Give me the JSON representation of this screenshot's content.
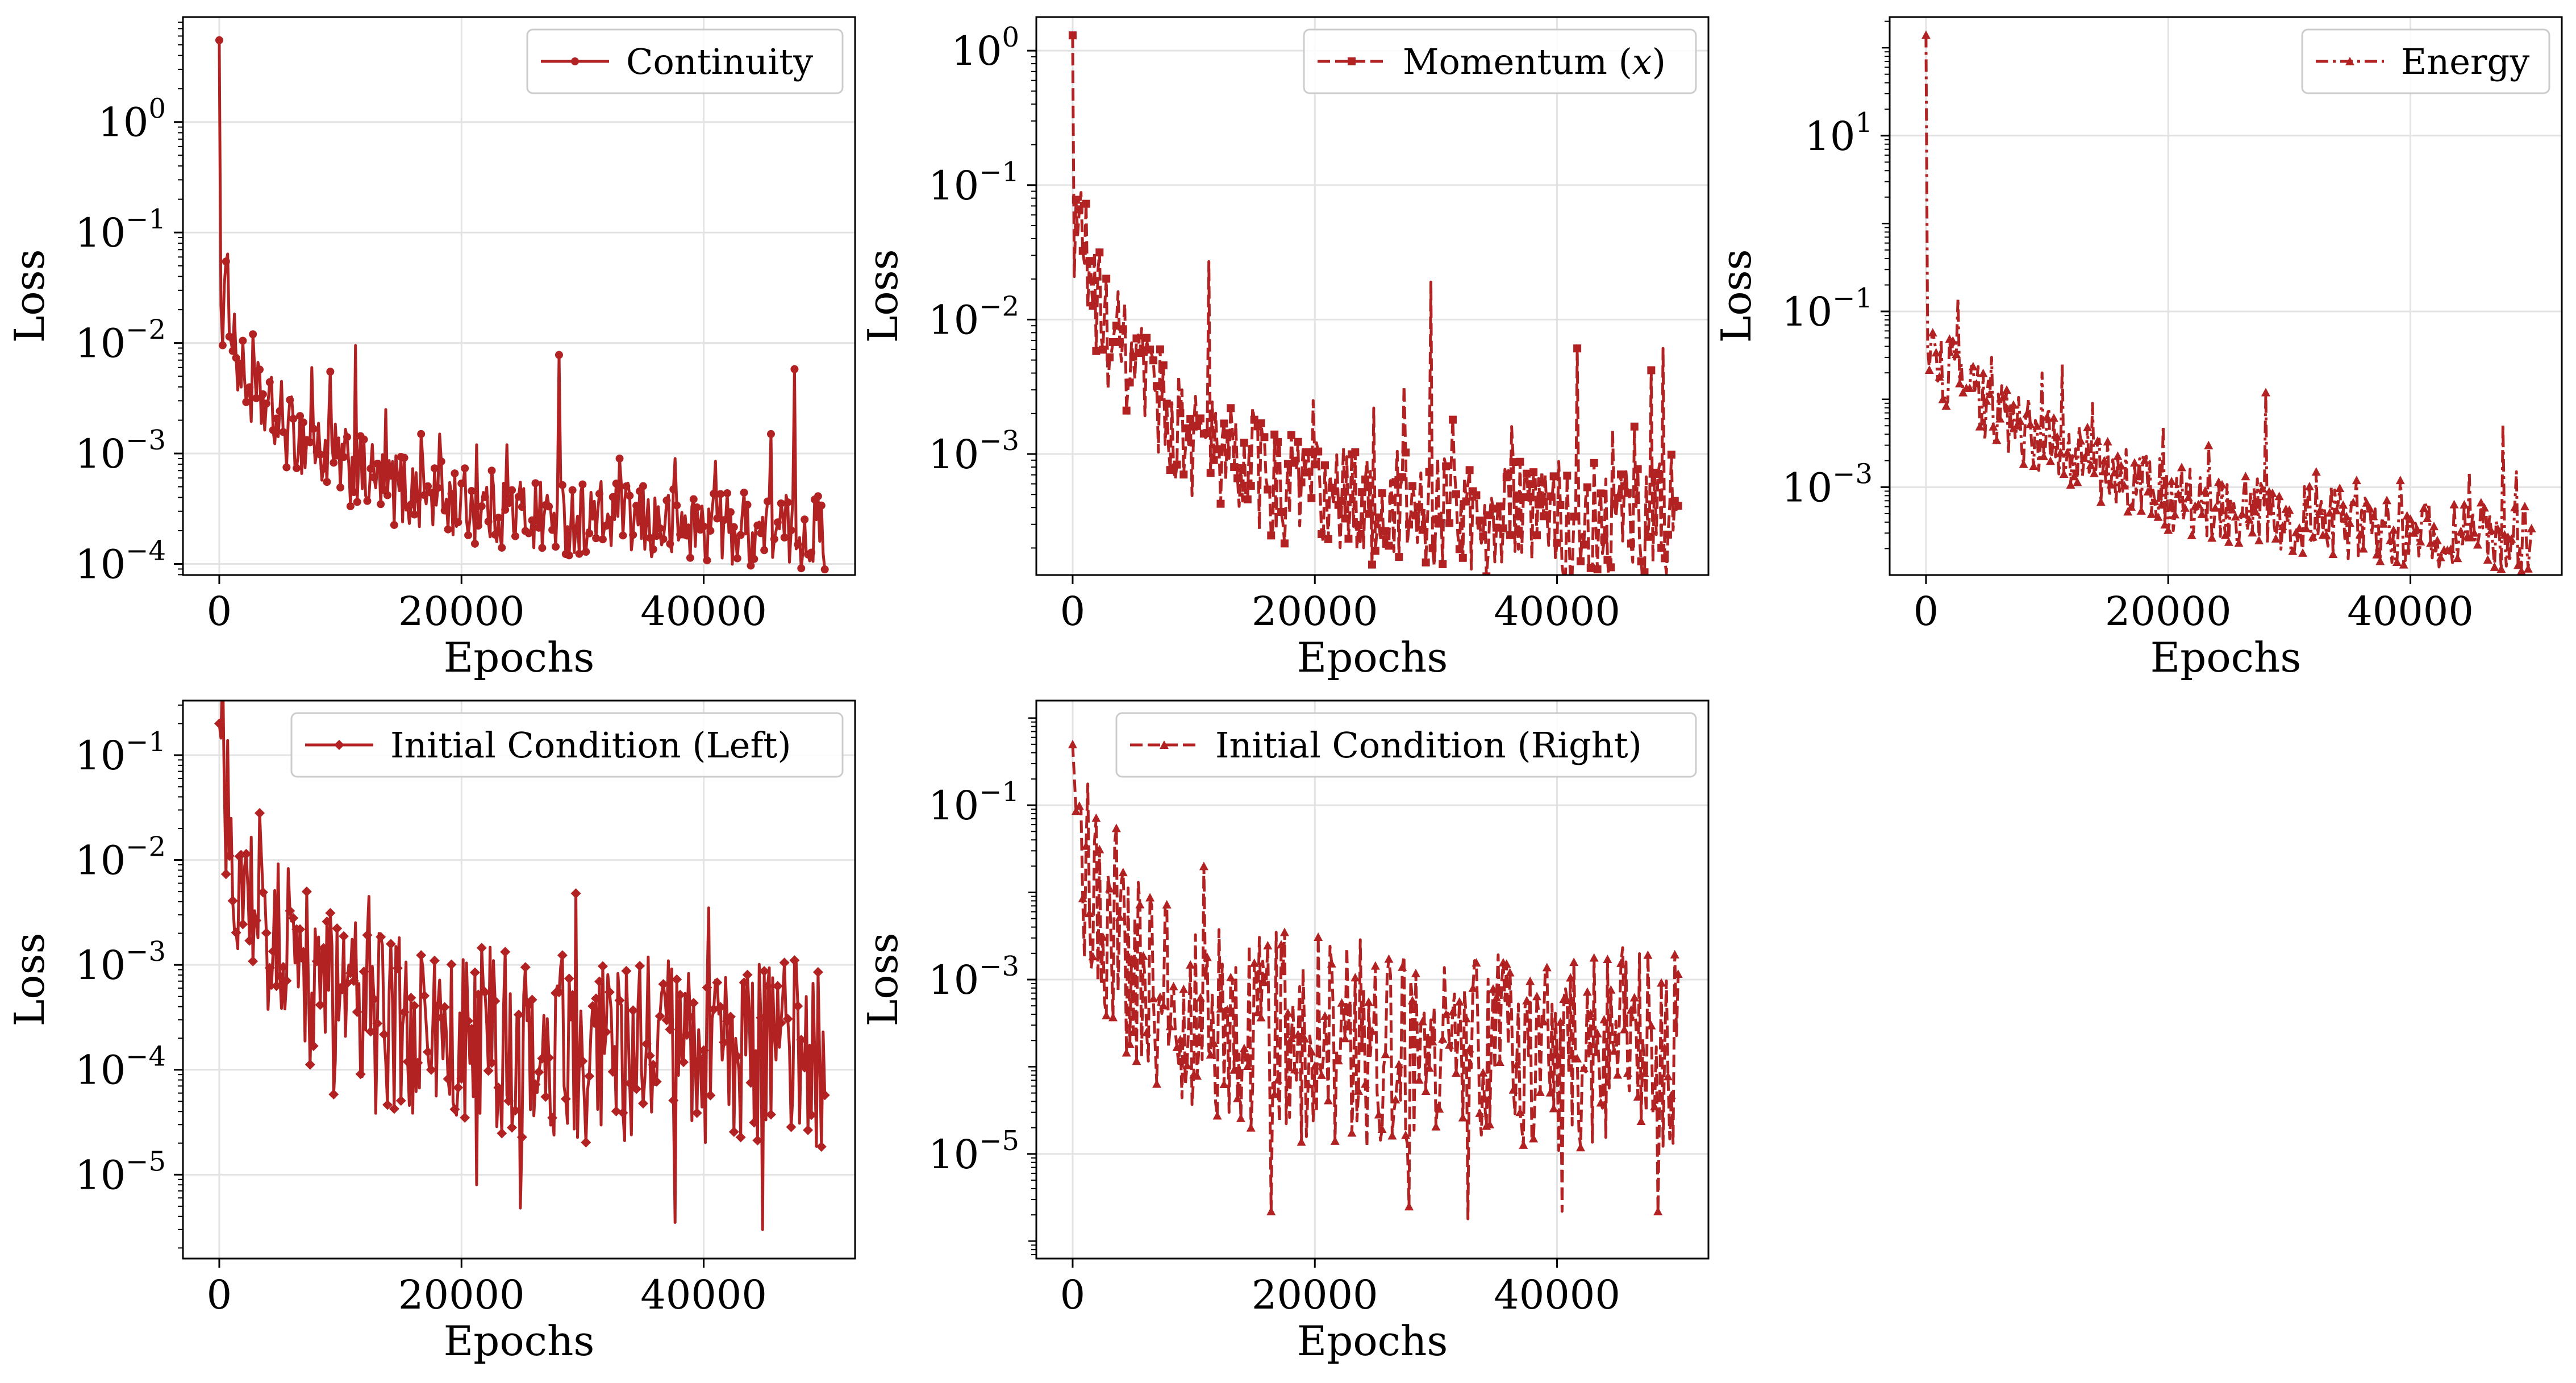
{
  "colors": {
    "series": "#b22222",
    "grid": "#e3e3e3",
    "axes": "#000000"
  },
  "chart_data": [
    {
      "type": "line",
      "panel": "continuity",
      "xlabel": "Epochs",
      "ylabel": "Loss",
      "yscale": "log",
      "xlim": [
        -3000,
        52500
      ],
      "ylim_exp": [
        -4.1,
        0.95
      ],
      "xticks": [
        0,
        20000,
        40000
      ],
      "xtick_labels": [
        "0",
        "20000",
        "40000"
      ],
      "yticks_exp": [
        0,
        -1,
        -2,
        -3,
        -4
      ],
      "ytick_labels": [
        {
          "base": "10",
          "exp": "0"
        },
        {
          "base": "10",
          "exp": "−1"
        },
        {
          "base": "10",
          "exp": "−2"
        },
        {
          "base": "10",
          "exp": "−3"
        },
        {
          "base": "10",
          "exp": "−4"
        }
      ],
      "legend": {
        "label": "Continuity",
        "position": "upper right",
        "linestyle": "solid",
        "marker": "dot"
      },
      "grid": true,
      "series": [
        {
          "name": "Continuity",
          "x": [
            0,
            150,
            300,
            500,
            700,
            1000,
            1500,
            2000,
            2500,
            3000,
            4000,
            5000,
            6000,
            7000,
            8000,
            9000,
            10000,
            11000,
            12000,
            14000,
            16000,
            18000,
            20000,
            22000,
            24000,
            26000,
            28000,
            30000,
            32000,
            34000,
            36000,
            38000,
            40000,
            42000,
            44000,
            46000,
            47500,
            48500,
            50000
          ],
          "y": [
            5.5,
            0.014,
            0.02,
            0.028,
            0.03,
            0.018,
            0.007,
            0.0045,
            0.004,
            0.0032,
            0.0025,
            0.0018,
            0.0015,
            0.0013,
            0.0011,
            0.00095,
            0.0008,
            0.0007,
            0.00062,
            0.0005,
            0.00045,
            0.0004,
            0.00035,
            0.00033,
            0.0003,
            0.00028,
            0.00027,
            0.00026,
            0.00025,
            0.00024,
            0.00023,
            0.00022,
            0.00022,
            0.00021,
            0.00021,
            0.0002,
            0.0002,
            0.0002,
            0.00019
          ],
          "noise": 0.35,
          "spikes": [
            [
              2800,
              0.012
            ],
            [
              5200,
              0.0045
            ],
            [
              7600,
              0.006
            ],
            [
              9200,
              0.0055
            ],
            [
              11300,
              0.0095
            ],
            [
              13800,
              0.0025
            ],
            [
              16600,
              0.0015
            ],
            [
              18200,
              0.0015
            ],
            [
              21300,
              0.0012
            ],
            [
              23800,
              0.0012
            ],
            [
              28000,
              0.0078
            ],
            [
              33000,
              0.0009
            ],
            [
              37600,
              0.0009
            ],
            [
              41000,
              0.00085
            ],
            [
              45600,
              0.0015
            ],
            [
              47500,
              0.0058
            ]
          ]
        }
      ]
    },
    {
      "type": "line",
      "panel": "momentum-x",
      "xlabel": "Epochs",
      "ylabel": "Loss",
      "yscale": "log",
      "xlim": [
        -3000,
        52500
      ],
      "ylim_exp": [
        -3.9,
        0.25
      ],
      "xticks": [
        0,
        20000,
        40000
      ],
      "xtick_labels": [
        "0",
        "20000",
        "40000"
      ],
      "yticks_exp": [
        0,
        -1,
        -2,
        -3
      ],
      "ytick_labels": [
        {
          "base": "10",
          "exp": "0"
        },
        {
          "base": "10",
          "exp": "−1"
        },
        {
          "base": "10",
          "exp": "−2"
        },
        {
          "base": "10",
          "exp": "−3"
        }
      ],
      "legend": {
        "label": "Momentum (",
        "label_var": "x",
        "label_end": ")",
        "position": "upper right",
        "linestyle": "dashed",
        "marker": "square"
      },
      "grid": true,
      "series": [
        {
          "name": "Momentum (x)",
          "x": [
            0,
            150,
            300,
            500,
            700,
            1000,
            1500,
            2000,
            2500,
            3000,
            4000,
            5000,
            6000,
            7000,
            8000,
            9000,
            10000,
            12000,
            14000,
            16000,
            18000,
            20000,
            22000,
            24000,
            26000,
            28000,
            30000,
            32000,
            34000,
            36000,
            38000,
            40000,
            42000,
            44000,
            46000,
            48000,
            49000,
            50000
          ],
          "y": [
            1.3,
            0.015,
            0.04,
            0.06,
            0.05,
            0.035,
            0.02,
            0.013,
            0.01,
            0.008,
            0.0055,
            0.004,
            0.003,
            0.0023,
            0.0018,
            0.0015,
            0.0013,
            0.001,
            0.0008,
            0.00065,
            0.00055,
            0.0005,
            0.00045,
            0.00042,
            0.0004,
            0.00038,
            0.00036,
            0.00035,
            0.00034,
            0.00033,
            0.00032,
            0.00032,
            0.00031,
            0.00031,
            0.0003,
            0.0003,
            0.00032,
            0.00045
          ],
          "noise": 0.45,
          "spikes": [
            [
              3600,
              0.009
            ],
            [
              7200,
              0.006
            ],
            [
              11300,
              0.027
            ],
            [
              14800,
              0.0022
            ],
            [
              19800,
              0.0025
            ],
            [
              24800,
              0.0022
            ],
            [
              27300,
              0.0032
            ],
            [
              29600,
              0.019
            ],
            [
              31400,
              0.0018
            ],
            [
              36200,
              0.0016
            ],
            [
              41600,
              0.0061
            ],
            [
              44600,
              0.0015
            ],
            [
              46400,
              0.0016
            ],
            [
              47800,
              0.0042
            ],
            [
              48800,
              0.0061
            ]
          ]
        }
      ]
    },
    {
      "type": "line",
      "panel": "energy",
      "xlabel": "Epochs",
      "ylabel": "Loss",
      "yscale": "log",
      "xlim": [
        -3000,
        52500
      ],
      "ylim_exp": [
        -4.0,
        2.35
      ],
      "xticks": [
        0,
        20000,
        40000
      ],
      "xtick_labels": [
        "0",
        "20000",
        "40000"
      ],
      "yticks_exp": [
        1,
        -1,
        -3
      ],
      "ytick_labels": [
        {
          "base": "10",
          "exp": "1"
        },
        {
          "base": "10",
          "exp": "−1"
        },
        {
          "base": "10",
          "exp": "−3"
        }
      ],
      "legend": {
        "label": "Energy",
        "position": "upper right",
        "linestyle": "dashdot",
        "marker": "triangle"
      },
      "grid": true,
      "series": [
        {
          "name": "Energy",
          "x": [
            0,
            150,
            300,
            500,
            800,
            1200,
            2000,
            2500,
            3000,
            4000,
            5000,
            6000,
            8000,
            10000,
            12000,
            14000,
            16000,
            18000,
            20000,
            22000,
            24000,
            26000,
            28000,
            30000,
            32000,
            34000,
            36000,
            38000,
            40000,
            42000,
            44000,
            46000,
            47500,
            48500,
            50000
          ],
          "y": [
            140,
            0.02,
            0.04,
            0.035,
            0.03,
            0.022,
            0.02,
            0.018,
            0.015,
            0.011,
            0.008,
            0.006,
            0.0045,
            0.0035,
            0.0025,
            0.0018,
            0.0013,
            0.001,
            0.0008,
            0.0007,
            0.0006,
            0.00055,
            0.0005,
            0.00045,
            0.00042,
            0.0004,
            0.00035,
            0.00033,
            0.0003,
            0.00029,
            0.00028,
            0.00027,
            0.00026,
            0.00025,
            0.00024
          ],
          "noise": 0.4,
          "spikes": [
            [
              2600,
              0.14
            ],
            [
              5400,
              0.03
            ],
            [
              9600,
              0.02
            ],
            [
              11300,
              0.025
            ],
            [
              13800,
              0.009
            ],
            [
              19600,
              0.005
            ],
            [
              23400,
              0.003
            ],
            [
              28000,
              0.012
            ],
            [
              32200,
              0.0015
            ],
            [
              35600,
              0.0012
            ],
            [
              39200,
              0.0012
            ],
            [
              44800,
              0.0015
            ],
            [
              47700,
              0.0052
            ],
            [
              48800,
              0.0015
            ]
          ]
        }
      ]
    },
    {
      "type": "line",
      "panel": "initial-condition-left",
      "xlabel": "Epochs",
      "ylabel": "Loss",
      "yscale": "log",
      "xlim": [
        -3000,
        52500
      ],
      "ylim_exp": [
        -5.8,
        -0.48
      ],
      "xticks": [
        0,
        20000,
        40000
      ],
      "xtick_labels": [
        "0",
        "20000",
        "40000"
      ],
      "yticks_exp": [
        -1,
        -2,
        -3,
        -4,
        -5
      ],
      "ytick_labels": [
        {
          "base": "10",
          "exp": "−1"
        },
        {
          "base": "10",
          "exp": "−2"
        },
        {
          "base": "10",
          "exp": "−3"
        },
        {
          "base": "10",
          "exp": "−4"
        },
        {
          "base": "10",
          "exp": "−5"
        }
      ],
      "legend": {
        "label": "Initial Condition (Left)",
        "position": "upper right",
        "linestyle": "solid",
        "marker": "diamond"
      },
      "grid": true,
      "series": [
        {
          "name": "Initial Condition (Left)",
          "x": [
            0,
            300,
            600,
            1000,
            1500,
            2000,
            3000,
            4000,
            6000,
            8000,
            10000,
            15000,
            20000,
            25000,
            30000,
            35000,
            40000,
            45000,
            50000
          ],
          "y": [
            0.2,
            0.1,
            0.04,
            0.02,
            0.01,
            0.007,
            0.005,
            0.003,
            0.0012,
            0.0006,
            0.0004,
            0.00025,
            0.0002,
            0.00018,
            0.00016,
            0.00015,
            0.00015,
            0.00014,
            0.00014
          ],
          "noise": 0.9,
          "spikes": [
            [
              3800,
              0.005
            ],
            [
              7200,
              0.005
            ],
            [
              12400,
              0.0045
            ],
            [
              29400,
              0.0048
            ],
            [
              40400,
              0.0035
            ],
            [
              24800,
              4.8e-06
            ],
            [
              37600,
              3.5e-06
            ],
            [
              44800,
              3e-06
            ],
            [
              21200,
              8e-06
            ]
          ]
        }
      ]
    },
    {
      "type": "line",
      "panel": "initial-condition-right",
      "xlabel": "Epochs",
      "ylabel": "Loss",
      "yscale": "log",
      "xlim": [
        -3000,
        52500
      ],
      "ylim_exp": [
        -6.2,
        0.2
      ],
      "xticks": [
        0,
        20000,
        40000
      ],
      "xtick_labels": [
        "0",
        "20000",
        "40000"
      ],
      "yticks_exp": [
        -1,
        -3,
        -5
      ],
      "ytick_labels": [
        {
          "base": "10",
          "exp": "−1"
        },
        {
          "base": "10",
          "exp": "−3"
        },
        {
          "base": "10",
          "exp": "−5"
        }
      ],
      "legend": {
        "label": "Initial Condition (Right)",
        "position": "upper right",
        "linestyle": "dashed",
        "marker": "triangle"
      },
      "grid": true,
      "series": [
        {
          "name": "Initial Condition (Right)",
          "x": [
            0,
            300,
            600,
            1000,
            1500,
            2000,
            3000,
            4000,
            5000,
            7000,
            10000,
            15000,
            20000,
            25000,
            30000,
            35000,
            40000,
            45000,
            50000
          ],
          "y": [
            0.5,
            0.08,
            0.04,
            0.02,
            0.012,
            0.008,
            0.005,
            0.003,
            0.0012,
            0.0006,
            0.00035,
            0.00025,
            0.0002,
            0.00018,
            0.00017,
            0.00016,
            0.00016,
            0.00015,
            0.00015
          ],
          "noise": 1.2,
          "spikes": [
            [
              10800,
              0.02
            ],
            [
              16400,
              2.2e-06
            ],
            [
              32600,
              1.8e-06
            ],
            [
              48400,
              2.2e-06
            ],
            [
              27800,
              2.5e-06
            ],
            [
              40400,
              2.2e-06
            ]
          ]
        }
      ]
    }
  ]
}
